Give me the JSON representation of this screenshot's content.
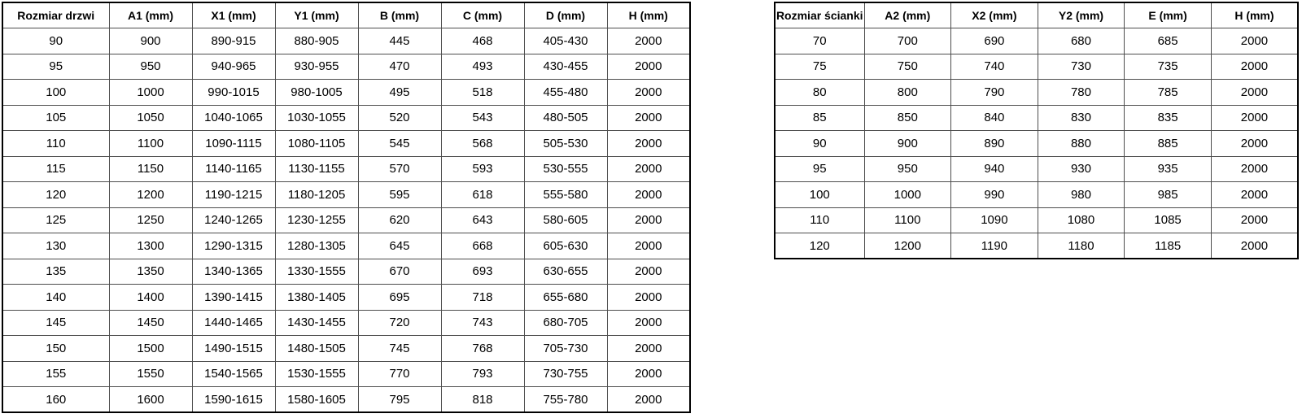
{
  "colors": {
    "background": "#ffffff",
    "outer_border": "#000000",
    "inner_border": "#4d4d4d",
    "text": "#000000"
  },
  "door_table": {
    "headers": [
      "Rozmiar drzwi",
      "A1 (mm)",
      "X1 (mm)",
      "Y1 (mm)",
      "B (mm)",
      "C (mm)",
      "D (mm)",
      "H (mm)"
    ],
    "rows": [
      [
        "90",
        "900",
        "890-915",
        "880-905",
        "445",
        "468",
        "405-430",
        "2000"
      ],
      [
        "95",
        "950",
        "940-965",
        "930-955",
        "470",
        "493",
        "430-455",
        "2000"
      ],
      [
        "100",
        "1000",
        "990-1015",
        "980-1005",
        "495",
        "518",
        "455-480",
        "2000"
      ],
      [
        "105",
        "1050",
        "1040-1065",
        "1030-1055",
        "520",
        "543",
        "480-505",
        "2000"
      ],
      [
        "110",
        "1100",
        "1090-1115",
        "1080-1105",
        "545",
        "568",
        "505-530",
        "2000"
      ],
      [
        "115",
        "1150",
        "1140-1165",
        "1130-1155",
        "570",
        "593",
        "530-555",
        "2000"
      ],
      [
        "120",
        "1200",
        "1190-1215",
        "1180-1205",
        "595",
        "618",
        "555-580",
        "2000"
      ],
      [
        "125",
        "1250",
        "1240-1265",
        "1230-1255",
        "620",
        "643",
        "580-605",
        "2000"
      ],
      [
        "130",
        "1300",
        "1290-1315",
        "1280-1305",
        "645",
        "668",
        "605-630",
        "2000"
      ],
      [
        "135",
        "1350",
        "1340-1365",
        "1330-1555",
        "670",
        "693",
        "630-655",
        "2000"
      ],
      [
        "140",
        "1400",
        "1390-1415",
        "1380-1405",
        "695",
        "718",
        "655-680",
        "2000"
      ],
      [
        "145",
        "1450",
        "1440-1465",
        "1430-1455",
        "720",
        "743",
        "680-705",
        "2000"
      ],
      [
        "150",
        "1500",
        "1490-1515",
        "1480-1505",
        "745",
        "768",
        "705-730",
        "2000"
      ],
      [
        "155",
        "1550",
        "1540-1565",
        "1530-1555",
        "770",
        "793",
        "730-755",
        "2000"
      ],
      [
        "160",
        "1600",
        "1590-1615",
        "1580-1605",
        "795",
        "818",
        "755-780",
        "2000"
      ]
    ]
  },
  "panel_table": {
    "headers": [
      "Rozmiar ścianki",
      "A2 (mm)",
      "X2 (mm)",
      "Y2 (mm)",
      "E (mm)",
      "H (mm)"
    ],
    "rows": [
      [
        "70",
        "700",
        "690",
        "680",
        "685",
        "2000"
      ],
      [
        "75",
        "750",
        "740",
        "730",
        "735",
        "2000"
      ],
      [
        "80",
        "800",
        "790",
        "780",
        "785",
        "2000"
      ],
      [
        "85",
        "850",
        "840",
        "830",
        "835",
        "2000"
      ],
      [
        "90",
        "900",
        "890",
        "880",
        "885",
        "2000"
      ],
      [
        "95",
        "950",
        "940",
        "930",
        "935",
        "2000"
      ],
      [
        "100",
        "1000",
        "990",
        "980",
        "985",
        "2000"
      ],
      [
        "110",
        "1100",
        "1090",
        "1080",
        "1085",
        "2000"
      ],
      [
        "120",
        "1200",
        "1190",
        "1180",
        "1185",
        "2000"
      ]
    ]
  }
}
